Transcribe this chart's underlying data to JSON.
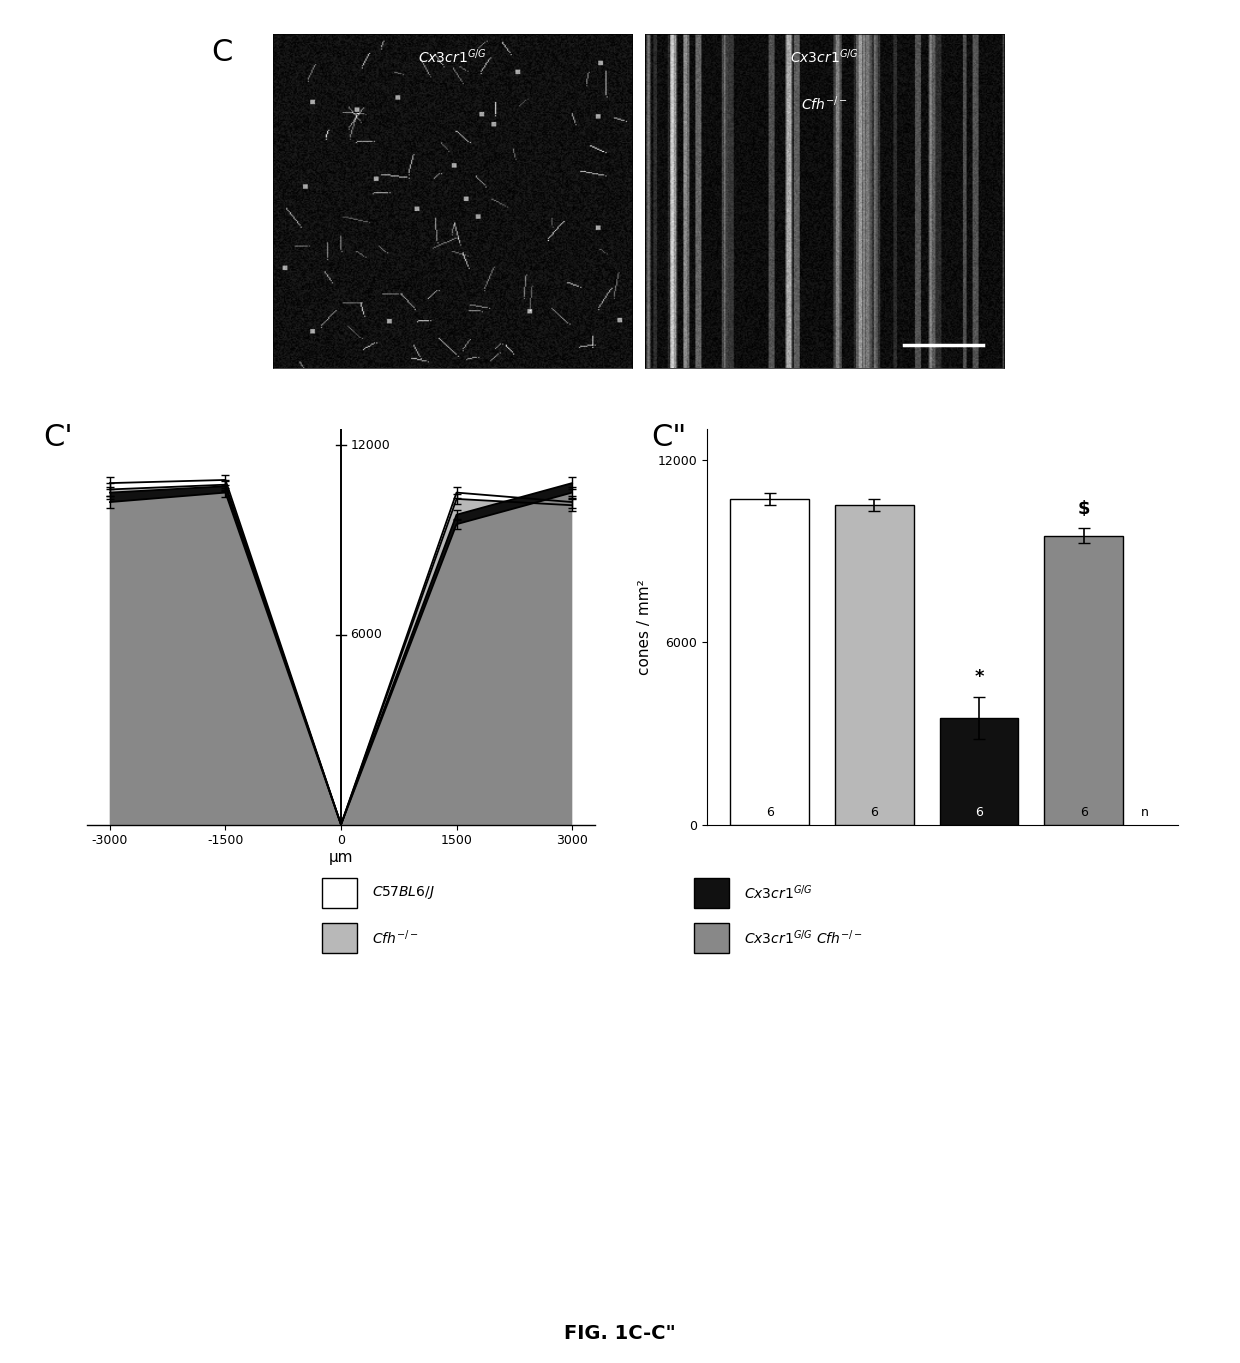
{
  "fig_title": "FIG. 1C-C\"",
  "panel_C_label": "C",
  "panel_Cprime_label": "C'",
  "panel_Cdprime_label": "C\"",
  "cprime_xlabel": "μm",
  "cprime_xticks": [
    -3000,
    -1500,
    0,
    1500,
    3000
  ],
  "C57BL6_values": [
    10800,
    10900,
    0,
    10500,
    10200
  ],
  "Cfh_values": [
    10600,
    10750,
    0,
    10300,
    10100
  ],
  "Cx3cr1_values": [
    10500,
    10700,
    0,
    9800,
    10800
  ],
  "Cx3cr1Cfh_values": [
    10200,
    10500,
    0,
    9500,
    10500
  ],
  "C57BL6_errors": [
    200,
    150,
    0,
    180,
    200
  ],
  "Cfh_errors": [
    200,
    160,
    0,
    170,
    190
  ],
  "Cx3cr1_errors": [
    190,
    155,
    0,
    160,
    180
  ],
  "Cx3cr1Cfh_errors": [
    185,
    150,
    0,
    155,
    175
  ],
  "bar_values": [
    10700,
    10500,
    3500,
    9500
  ],
  "bar_errors": [
    200,
    200,
    700,
    250
  ],
  "bar_colors": [
    "#ffffff",
    "#b8b8b8",
    "#111111",
    "#888888"
  ],
  "bar_n": [
    6,
    6,
    6,
    6
  ],
  "bar_star": [
    "",
    "",
    "*",
    "$"
  ],
  "cdprime_ylabel": "cones / mm²",
  "color_white": "#ffffff",
  "color_lightgray": "#b8b8b8",
  "color_black": "#111111",
  "color_gray": "#888888",
  "bg_color": "#ffffff"
}
